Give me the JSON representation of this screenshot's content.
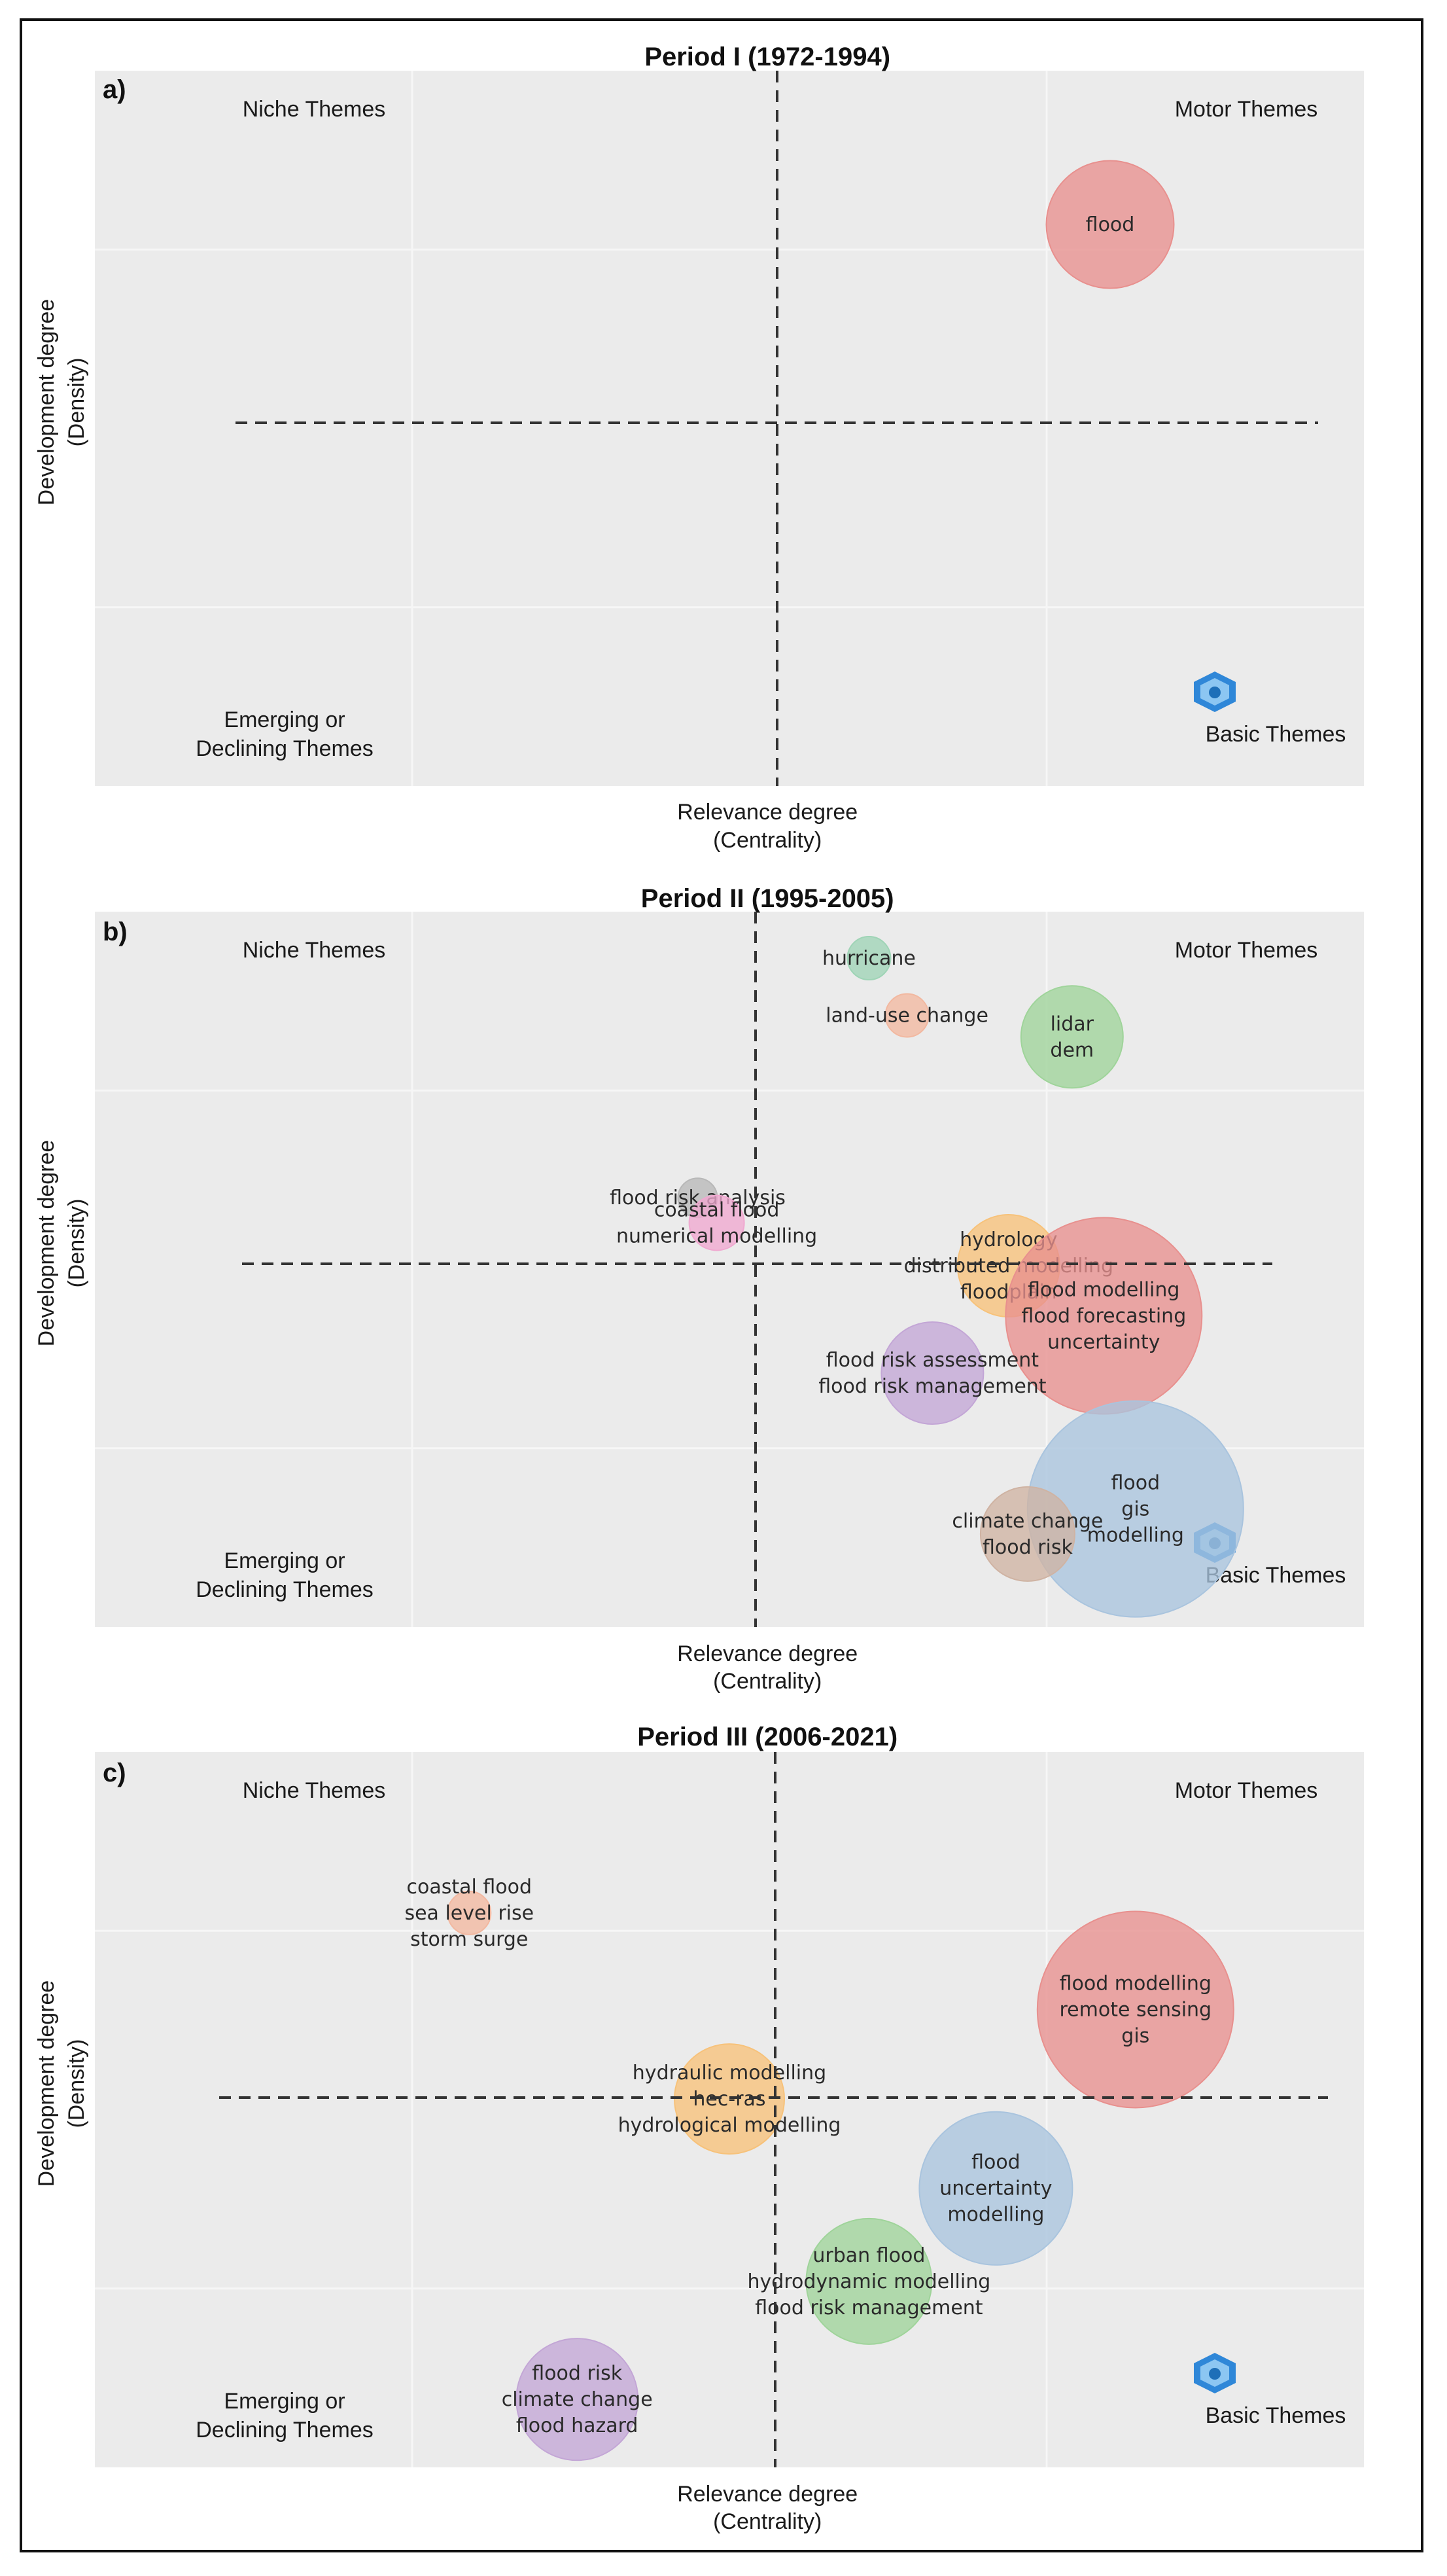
{
  "figure_caption": "",
  "chart_data": [
    {
      "type": "scatter",
      "subtype": "thematic-map",
      "panel_label": "a)",
      "title": "Period I (1972-1994)",
      "xlabel": "Relevance degree",
      "xlabel_sub": "(Centrality)",
      "ylabel": "Development degree",
      "ylabel_sub": "(Density)",
      "quadrants": {
        "top_left": "Niche Themes",
        "top_right": "Motor Themes",
        "bottom_left": [
          "Emerging or",
          "Declining Themes"
        ],
        "bottom_right": "Basic Themes"
      },
      "xlim": [
        0,
        1
      ],
      "ylim": [
        0,
        1
      ],
      "x_divider": 0.5,
      "y_divider": 0.5,
      "grid": true,
      "clusters": [
        {
          "labels": [
            "flood"
          ],
          "x": 0.8,
          "y": 0.785,
          "size": 0.65,
          "color": "#e8908e"
        }
      ]
    },
    {
      "type": "scatter",
      "subtype": "thematic-map",
      "panel_label": "b)",
      "title": "Period II (1995-2005)",
      "xlabel": "Relevance degree",
      "xlabel_sub": "(Centrality)",
      "ylabel": "Development degree",
      "ylabel_sub": "(Density)",
      "quadrants": {
        "top_left": "Niche Themes",
        "top_right": "Motor Themes",
        "bottom_left": [
          "Emerging or",
          "Declining Themes"
        ],
        "bottom_right": "Basic Themes"
      },
      "xlim": [
        0,
        1
      ],
      "ylim": [
        0,
        1
      ],
      "x_divider": 0.5,
      "y_divider": 0.5,
      "grid": true,
      "clusters": [
        {
          "labels": [
            "hurricane"
          ],
          "x": 0.61,
          "y": 0.935,
          "size": 0.22,
          "color": "#9fd4b6"
        },
        {
          "labels": [
            "land-use change"
          ],
          "x": 0.64,
          "y": 0.855,
          "size": 0.22,
          "color": "#f2b8a0"
        },
        {
          "labels": [
            "lidar",
            "dem"
          ],
          "x": 0.77,
          "y": 0.825,
          "size": 0.52,
          "color": "#9fd49a"
        },
        {
          "labels": [
            "flood risk analysis"
          ],
          "x": 0.475,
          "y": 0.6,
          "size": 0.2,
          "color": "#b8b8b8"
        },
        {
          "labels": [
            "coastal flood",
            "numerical modelling"
          ],
          "x": 0.49,
          "y": 0.565,
          "size": 0.28,
          "color": "#f0a8d0"
        },
        {
          "labels": [
            "hydrology",
            "distributed modelling",
            "floodplain"
          ],
          "x": 0.72,
          "y": 0.505,
          "size": 0.52,
          "color": "#f7c27a"
        },
        {
          "labels": [
            "flood modelling",
            "flood forecasting",
            "uncertainty"
          ],
          "x": 0.795,
          "y": 0.435,
          "size": 1.0,
          "color": "#e8908e"
        },
        {
          "labels": [
            "flood risk assessment",
            "flood risk management"
          ],
          "x": 0.66,
          "y": 0.355,
          "size": 0.52,
          "color": "#c3a6d6"
        },
        {
          "labels": [
            "flood",
            "gis",
            "modelling"
          ],
          "x": 0.82,
          "y": 0.165,
          "size": 1.1,
          "color": "#a9c4de"
        },
        {
          "labels": [
            "climate change",
            "flood risk"
          ],
          "x": 0.735,
          "y": 0.13,
          "size": 0.48,
          "color": "#cfb3a3"
        }
      ]
    },
    {
      "type": "scatter",
      "subtype": "thematic-map",
      "panel_label": "c)",
      "title": "Period III (2006-2021)",
      "xlabel": "Relevance degree",
      "xlabel_sub": "(Centrality)",
      "ylabel": "Development degree",
      "ylabel_sub": "(Density)",
      "quadrants": {
        "top_left": "Niche Themes",
        "top_right": "Motor Themes",
        "bottom_left": [
          "Emerging or",
          "Declining Themes"
        ],
        "bottom_right": "Basic Themes"
      },
      "xlim": [
        0,
        1
      ],
      "ylim": [
        0,
        1
      ],
      "x_divider": 0.5,
      "y_divider": 0.5,
      "grid": true,
      "clusters": [
        {
          "labels": [
            "coastal flood",
            "sea level rise",
            "storm surge"
          ],
          "x": 0.295,
          "y": 0.775,
          "size": 0.22,
          "color": "#f2b8a0"
        },
        {
          "labels": [
            "flood modelling",
            "remote sensing",
            "gis"
          ],
          "x": 0.82,
          "y": 0.64,
          "size": 1.0,
          "color": "#e8908e"
        },
        {
          "labels": [
            "hydraulic modelling",
            "hec-ras",
            "hydrological modelling"
          ],
          "x": 0.5,
          "y": 0.515,
          "size": 0.56,
          "color": "#f7c27a"
        },
        {
          "labels": [
            "flood",
            "uncertainty",
            "modelling"
          ],
          "x": 0.71,
          "y": 0.39,
          "size": 0.78,
          "color": "#a9c4de"
        },
        {
          "labels": [
            "urban flood",
            "hydrodynamic modelling",
            "flood risk management"
          ],
          "x": 0.61,
          "y": 0.26,
          "size": 0.64,
          "color": "#9fd49a"
        },
        {
          "labels": [
            "flood risk",
            "climate change",
            "flood hazard"
          ],
          "x": 0.38,
          "y": 0.095,
          "size": 0.62,
          "color": "#c3a6d6"
        }
      ]
    }
  ]
}
